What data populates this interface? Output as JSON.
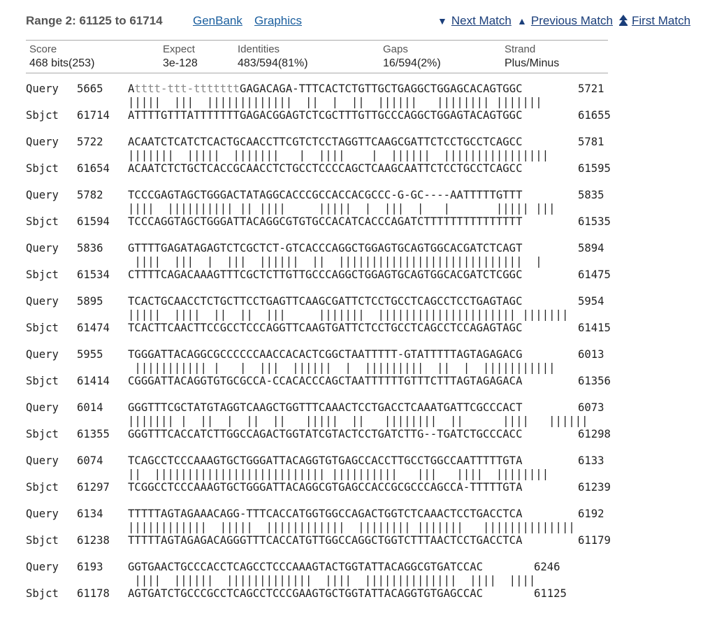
{
  "header": {
    "range_title": "Range 2: 61125 to 61714",
    "genbank_label": "GenBank",
    "graphics_label": "Graphics",
    "next_match_label": "Next Match",
    "previous_match_label": "Previous Match",
    "first_match_label": "First Match"
  },
  "stats": {
    "score_label": "Score",
    "score_value": "468 bits(253)",
    "expect_label": "Expect",
    "expect_value": "3e-128",
    "identities_label": "Identities",
    "identities_value": "483/594(81%)",
    "gaps_label": "Gaps",
    "gaps_value": "16/594(2%)",
    "strand_label": "Strand",
    "strand_value": "Plus/Minus"
  },
  "alignment": {
    "query_label": "Query",
    "sbjct_label": "Sbjct",
    "blocks": [
      {
        "q_start": "5665",
        "q_lower": "tttt-ttt-ttttttt",
        "q_seq": "AttttttttttttttttGAGACAGA-TTTCACTCTGTTGCTGAGGCTGGAGCACAGTGGC",
        "q_end": "5721",
        "mid": "|||||  |||  |||||||||||||  ||  |  ||  ||||||   |||||||| |||||||",
        "s_start": "61714",
        "s_seq": "ATTTTGTTTATTTTTTTGAGACGGAGTCTCGCTTTGTTGCCCAGGCTGGAGTACAGTGGC",
        "s_end": "61655"
      },
      {
        "q_start": "5722",
        "q_seq": "ACAATCTCATCTCACTGCAACCTTCGTCTCCTAGGTTCAAGCGATTCTCCTGCCTCAGCC",
        "q_end": "5781",
        "mid": "|||||||  |||||  |||||||   |  ||||    |  ||||||  ||||||||||||||||",
        "s_start": "61654",
        "s_seq": "ACAATCTCTGCTCACCGCAACCTCTGCCTCCCCAGCTCAAGCAATTCTCCTGCCTCAGCC",
        "s_end": "61595"
      },
      {
        "q_start": "5782",
        "q_seq": "TCCCGAGTAGCTGGGACTATAGGCACCCGCCACCACGCCC-G-GC----AATTTTTGTTT",
        "q_end": "5835",
        "mid": "||||  |||||||||| || ||||     |||||  |  |||  |   |       ||||| |||",
        "s_start": "61594",
        "s_seq": "TCCCAGGTAGCTGGGATTACAGGCGTGTGCCACATCACCCAGATCTTTTTTTTTTTTTTT",
        "s_end": "61535"
      },
      {
        "q_start": "5836",
        "q_seq": "GTTTTGAGATAGAGTCTCGCTCT-GTCACCCAGGCTGGAGTGCAGTGGCACGATCTCAGT",
        "q_end": "5894",
        "mid": " ||||  |||  |  |||  ||||||  ||  ||||||||||||||||||||||||||||  |",
        "s_start": "61534",
        "s_seq": "CTTTTCAGACAAAGTTTCGCTCTTGTTGCCCAGGCTGGAGTGCAGTGGCACGATCTCGGC",
        "s_end": "61475"
      },
      {
        "q_start": "5895",
        "q_seq": "TCACTGCAACCTCTGCTTCCTGAGTTCAAGCGATTCTCCTGCCTCAGCCTCCTGAGTAGC",
        "q_end": "5954",
        "mid": "|||||  ||||  ||  ||  |||     |||||||  ||||||||||||||||||||| |||||||",
        "s_start": "61474",
        "s_seq": "TCACTTCAACTTCCGCCTCCCAGGTTCAAGTGATTCTCCTGCCTCAGCCTCCAGAGTAGC",
        "s_end": "61415"
      },
      {
        "q_start": "5955",
        "q_seq": "TGGGATTACAGGCGCCCCCCAACCACACTCGGCTAATTTTT-GTATTTTTAGTAGAGACG",
        "q_end": "6013",
        "mid": " ||||||||||| |   |  |||  ||||||  |  |||||||||  ||  |  |||||||||||",
        "s_start": "61414",
        "s_seq": "CGGGATTACAGGTGTGCGCCA-CCACACCCAGCTAATTTTTTGTTTCTTTAGTAGAGACA",
        "s_end": "61356"
      },
      {
        "q_start": "6014",
        "q_seq": "GGGTTTCGCTATGTAGGTCAAGCTGGTTTCAAACTCCTGACCTCAAATGATTCGCCCACT",
        "q_end": "6073",
        "mid": "||||||| |  ||  |  ||  ||   |||||  ||   ||||||||  ||      ||||   ||||||",
        "s_start": "61355",
        "s_seq": "GGGTTTCACCATCTTGGCCAGACTGGTATCGTACTCCTGATCTTG--TGATCTGCCCACC",
        "s_end": "61298"
      },
      {
        "q_start": "6074",
        "q_seq": "TCAGCCTCCCAAAGTGCTGGGATTACAGGTGTGAGCCACCTTGCCTGGCCAATTTTTGTA",
        "q_end": "6133",
        "mid": "||  |||||||||||||||||||||||||| ||||||||||   |||   ||||  ||||||||",
        "s_start": "61297",
        "s_seq": "TCGGCCTCCCAAAGTGCTGGGATTACAGGCGTGAGCCACCGCGCCCAGCCA-TTTTTGTA",
        "s_end": "61239"
      },
      {
        "q_start": "6134",
        "q_seq": "TTTTTAGTAGAAACAGG-TTTCACCATGGTGGCCAGACTGGTCTCAAACTCCTGACCTCA",
        "q_end": "6192",
        "mid": "||||||||||||  |||||  ||||||||||||  |||||||| |||||||   ||||||||||||||",
        "s_start": "61238",
        "s_seq": "TTTTTAGTAGAGACAGGGTTTCACCATGTTGGCCAGGCTGGTCTTTAACTCCTGACCTCA",
        "s_end": "61179"
      },
      {
        "q_start": "6193",
        "q_seq": "GGTGAACTGCCCACCTCAGCCTCCCAAAGTACTGGTATTACAGGCGTGATCCAC",
        "q_end": "6246",
        "mid": " ||||  ||||||  |||||||||||||  ||||  ||||||||||||||  ||||  ||||",
        "s_start": "61178",
        "s_seq": "AGTGATCTGCCCGCCTCAGCCTCCCGAAGTGCTGGTATTACAGGTGTGAGCCAC",
        "s_end": "61125"
      }
    ]
  }
}
